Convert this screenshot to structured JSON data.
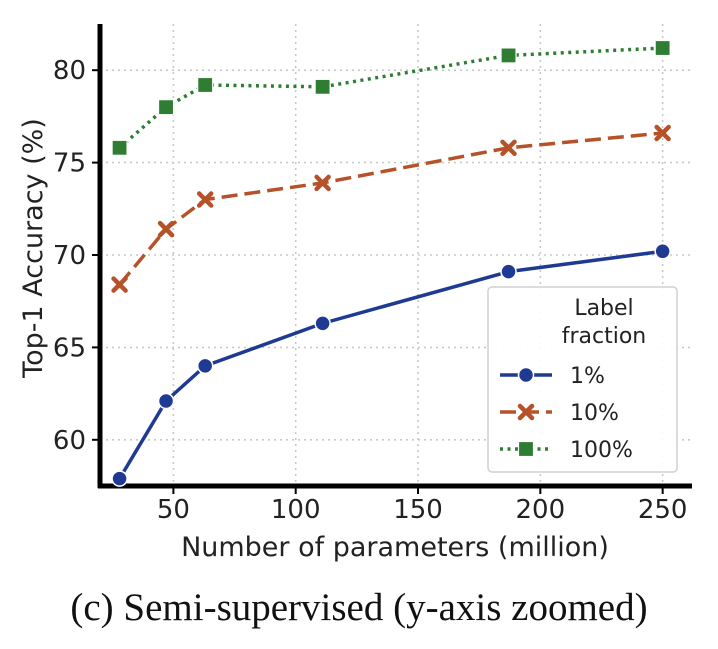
{
  "chart_data": {
    "type": "line",
    "title": "",
    "xlabel": "Number of parameters (million)",
    "ylabel": "Top-1 Accuracy (%)",
    "xlim": [
      20,
      262
    ],
    "ylim": [
      57.5,
      82.5
    ],
    "xticks": [
      50,
      100,
      150,
      200,
      250
    ],
    "yticks": [
      60,
      65,
      70,
      75,
      80
    ],
    "grid": true,
    "legend": {
      "title": "Label\nfraction",
      "placement": "bottom-right"
    },
    "series": [
      {
        "name": "1%",
        "color": "#1f3a93",
        "marker": "circle",
        "linestyle": "solid",
        "x": [
          28,
          47,
          63,
          111,
          187,
          250
        ],
        "y": [
          57.9,
          62.1,
          64.0,
          66.3,
          69.1,
          70.2
        ]
      },
      {
        "name": "10%",
        "color": "#b5522a",
        "marker": "x",
        "linestyle": "dashed",
        "x": [
          28,
          47,
          63,
          111,
          187,
          250
        ],
        "y": [
          68.4,
          71.4,
          73.0,
          73.9,
          75.8,
          76.6
        ]
      },
      {
        "name": "100%",
        "color": "#2e7d32",
        "marker": "square",
        "linestyle": "dotted",
        "x": [
          28,
          47,
          63,
          111,
          187,
          250
        ],
        "y": [
          75.8,
          78.0,
          79.2,
          79.1,
          80.8,
          81.2
        ]
      }
    ]
  },
  "caption": "(c) Semi-supervised (y-axis zoomed)"
}
